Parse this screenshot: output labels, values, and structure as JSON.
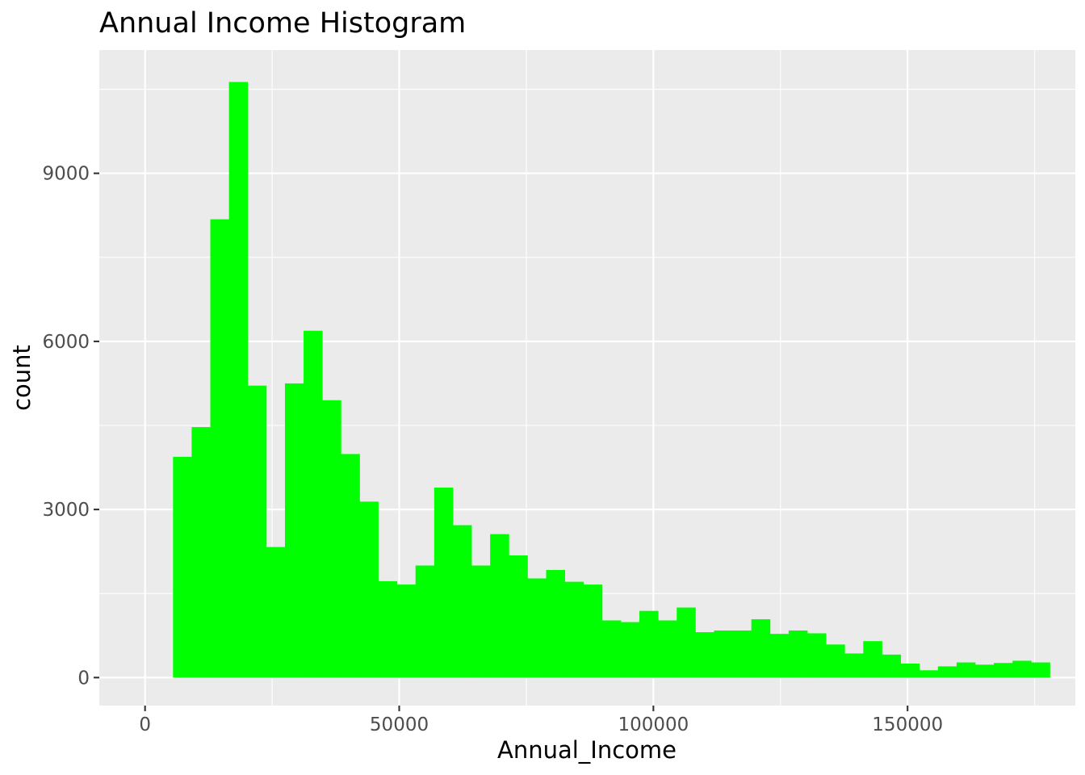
{
  "chart_data": {
    "type": "bar",
    "title": "Annual Income Histogram",
    "xlabel": "Annual_Income",
    "ylabel": "count",
    "xlim": [
      -9000,
      183000
    ],
    "ylim": [
      -500,
      11200
    ],
    "x_ticks": [
      0,
      50000,
      100000,
      150000
    ],
    "x_tick_labels": [
      "0",
      "50000",
      "100000",
      "150000"
    ],
    "y_ticks": [
      0,
      3000,
      6000,
      9000
    ],
    "y_tick_labels": [
      "0",
      "3000",
      "6000",
      "9000"
    ],
    "grid": true,
    "colors": {
      "bar_fill": "#00FF00",
      "panel_background": "#EBEBEB",
      "grid": "#FFFFFF"
    },
    "bin_width": 3670,
    "bin_start": 5500,
    "bin_centers": [
      7335,
      11005,
      14675,
      18345,
      22015,
      25685,
      29355,
      33025,
      36695,
      40365,
      44035,
      47705,
      51375,
      55045,
      58715,
      62385,
      66055,
      69725,
      73395,
      77065,
      80735,
      84405,
      88075,
      91745,
      95415,
      99085,
      102755,
      106425,
      110095,
      113765,
      117435,
      121105,
      124775,
      128445,
      132115,
      135785,
      139455,
      143125,
      146795,
      150465,
      154135,
      157805,
      161475,
      165145,
      168815,
      172485,
      176155
    ],
    "values": [
      3940,
      4470,
      8180,
      10630,
      5210,
      2330,
      5250,
      6190,
      4950,
      3990,
      3140,
      1720,
      1660,
      2000,
      3390,
      2720,
      2000,
      2560,
      2180,
      1770,
      1920,
      1710,
      1660,
      1020,
      990,
      1190,
      1020,
      1250,
      810,
      840,
      840,
      1040,
      780,
      840,
      790,
      590,
      430,
      650,
      410,
      250,
      130,
      200,
      270,
      230,
      260,
      300,
      270
    ]
  }
}
